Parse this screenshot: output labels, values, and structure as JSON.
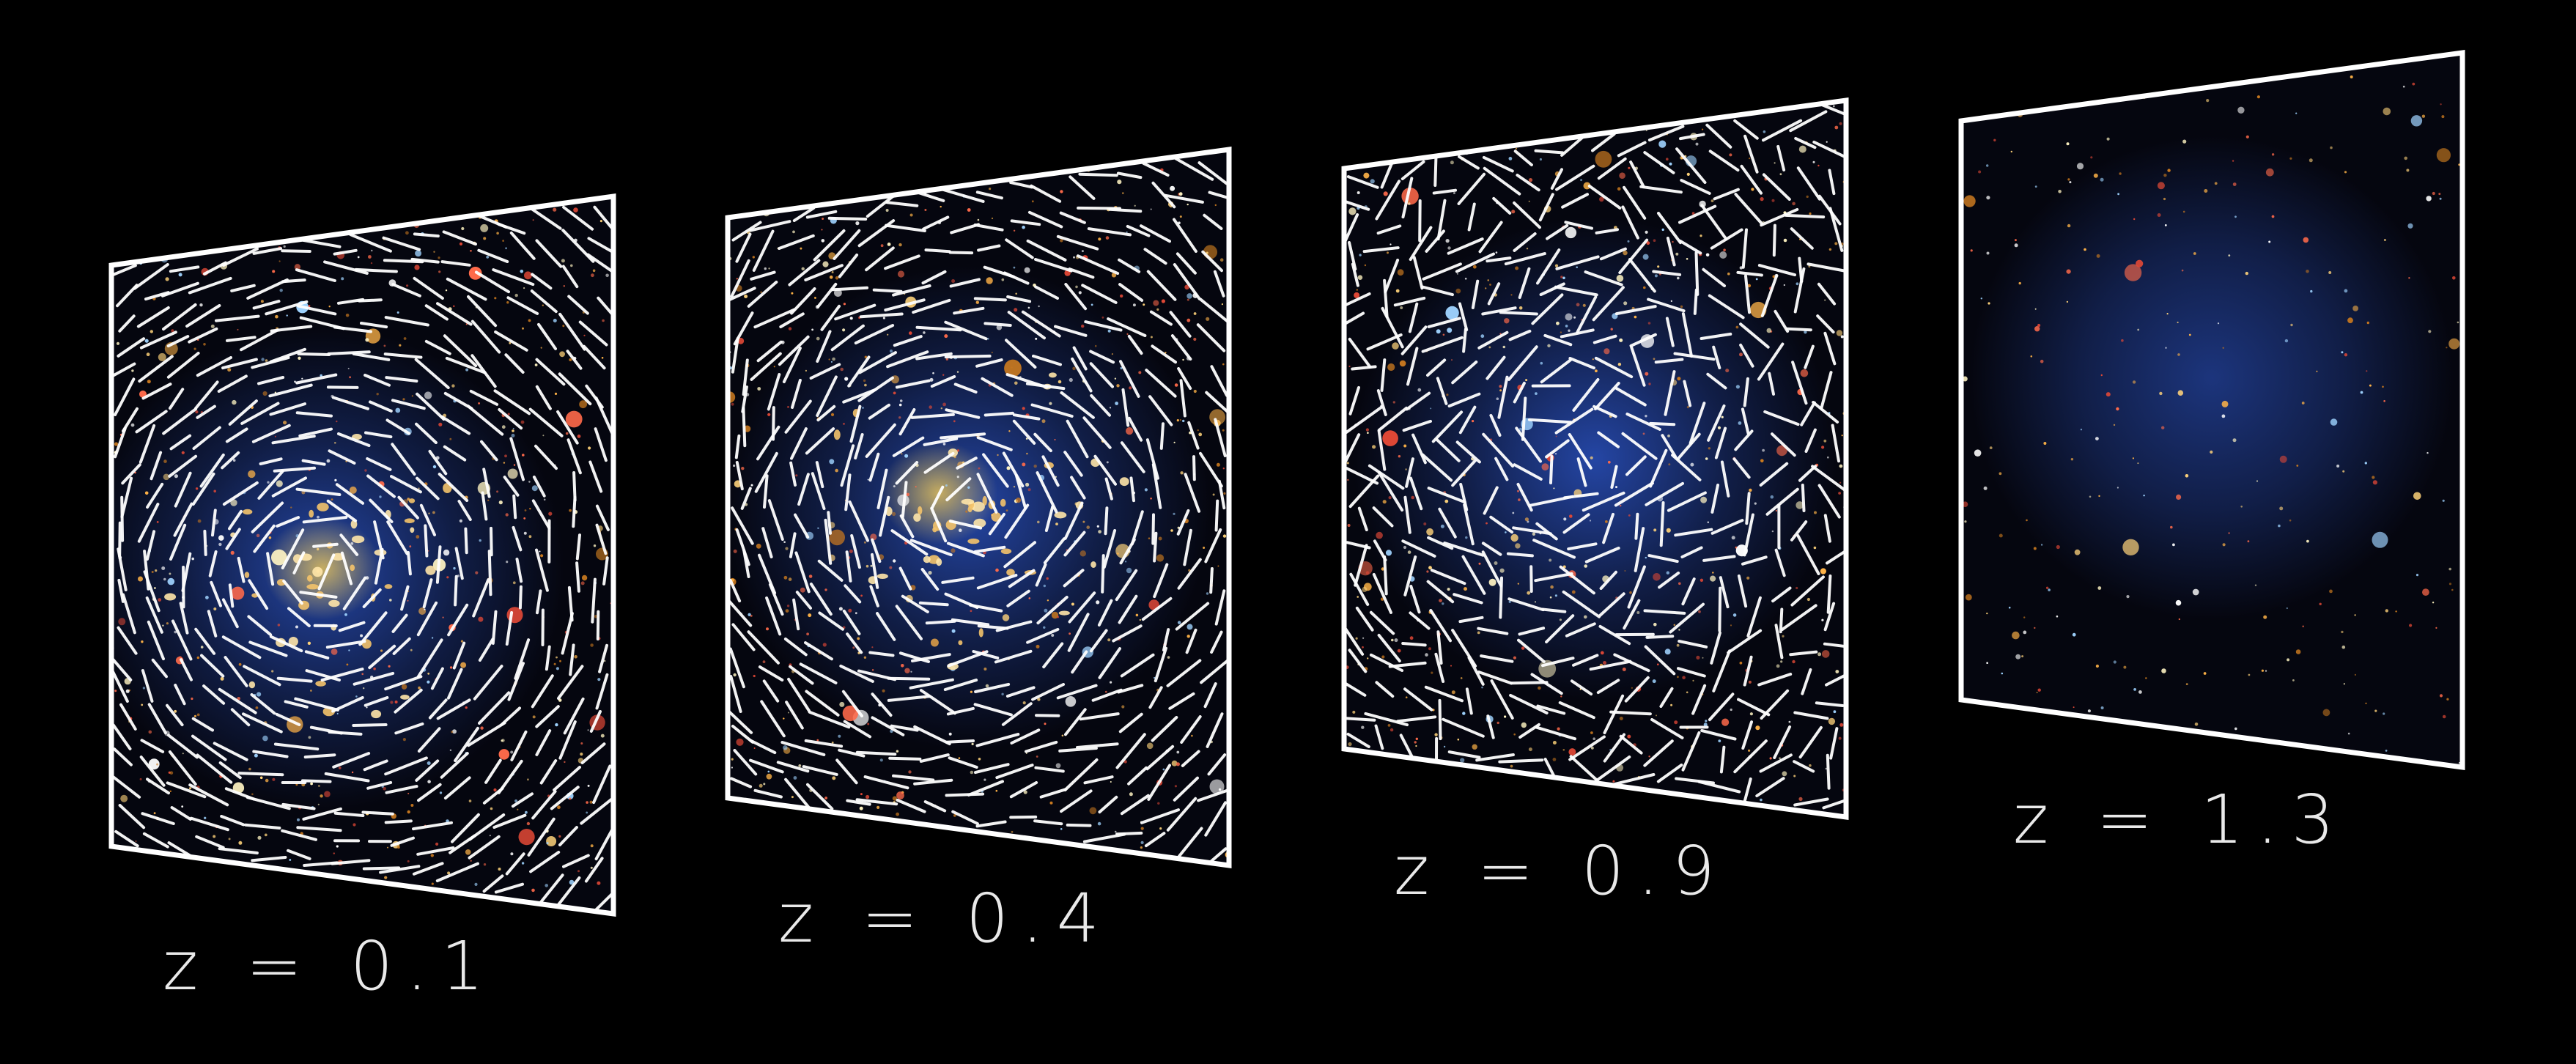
{
  "colors": {
    "background": "#000000",
    "frame": "#ffffff",
    "shear_stick": "#ffffff",
    "label_text": "#e9e9e9",
    "cluster_glow": "#2f5bd6",
    "core_glow": "#d8b85a"
  },
  "panels": [
    {
      "label": "z = 0.1",
      "has_shear_sticks": true,
      "has_core_galaxies": true
    },
    {
      "label": "z = 0.4",
      "has_shear_sticks": true,
      "has_core_galaxies": true
    },
    {
      "label": "z = 0.9",
      "has_shear_sticks": true,
      "has_core_galaxies": false
    },
    {
      "label": "z = 1.3",
      "has_shear_sticks": false,
      "has_core_galaxies": false
    }
  ]
}
